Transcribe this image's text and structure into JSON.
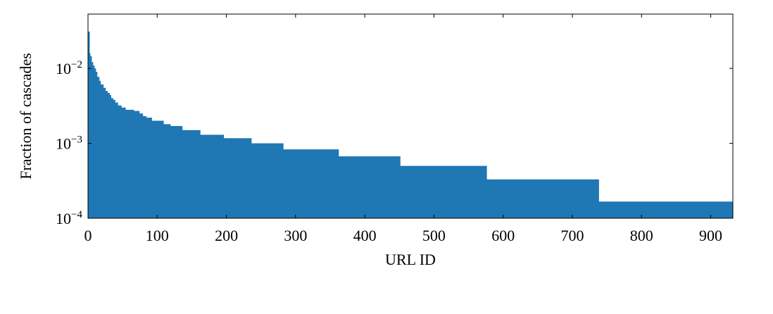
{
  "chart_data": {
    "type": "step-area",
    "xlabel": "URL ID",
    "ylabel": "Fraction of cascades",
    "x": [
      0,
      2,
      3,
      5,
      7,
      9,
      11,
      13,
      16,
      18,
      22,
      25,
      28,
      31,
      33,
      36,
      39,
      43,
      48,
      54,
      66,
      74,
      79,
      84,
      92,
      109,
      119,
      136,
      162,
      196,
      236,
      282,
      362,
      451,
      576,
      738
    ],
    "values": [
      0.031,
      0.016,
      0.0145,
      0.0121,
      0.0109,
      0.01,
      0.009,
      0.0077,
      0.0068,
      0.0061,
      0.0055,
      0.005,
      0.0047,
      0.0044,
      0.004,
      0.0038,
      0.0035,
      0.0032,
      0.003,
      0.0028,
      0.0027,
      0.0025,
      0.0023,
      0.0022,
      0.002,
      0.0018,
      0.0017,
      0.0015,
      0.0013,
      0.00117,
      0.001,
      0.00083,
      0.00067,
      0.0005,
      0.00033,
      0.000167
    ],
    "color": "#1f77b4",
    "xlim": [
      0,
      932
    ],
    "xticks": [
      0,
      100,
      200,
      300,
      400,
      500,
      600,
      700,
      800,
      900
    ],
    "ylim": [
      0.0001,
      0.053
    ],
    "ylog": true,
    "yticks": [
      {
        "value": 0.0001,
        "label": "10−4"
      },
      {
        "value": 0.001,
        "label": "10−3"
      },
      {
        "value": 0.01,
        "label": "10−2"
      }
    ]
  }
}
